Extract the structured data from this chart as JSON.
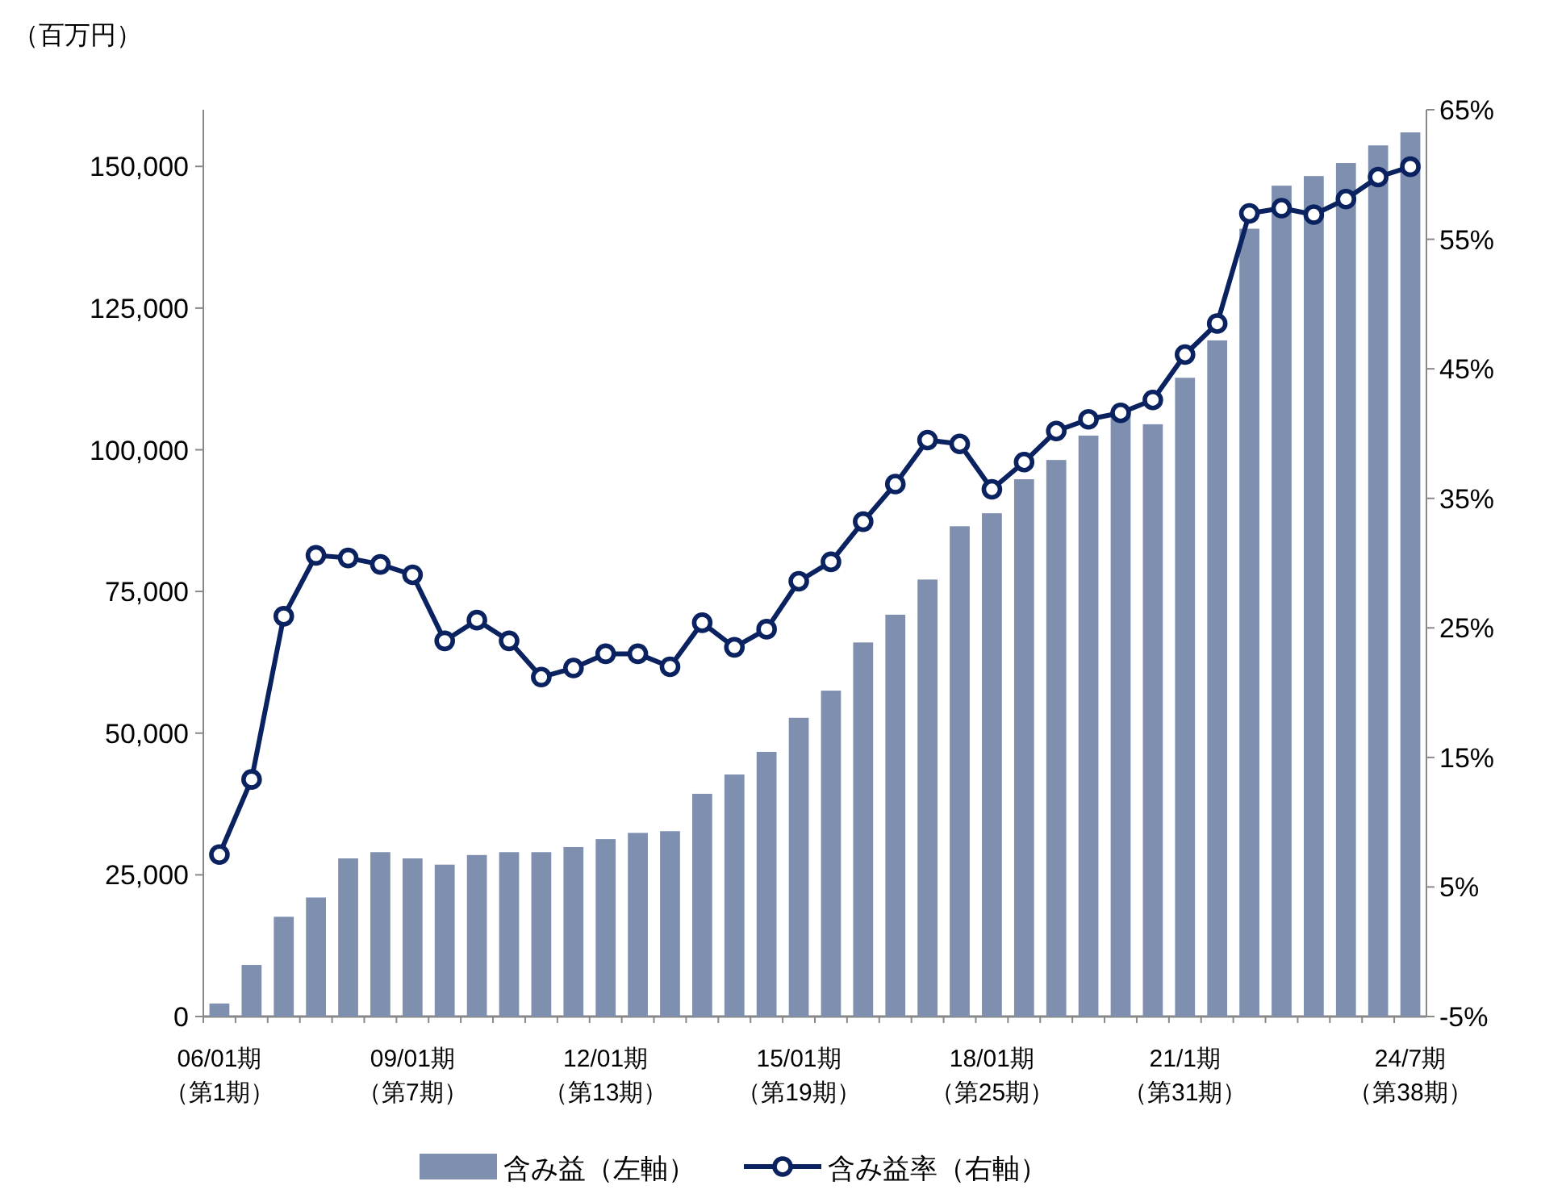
{
  "chart_data": {
    "type": "bar",
    "ylabel": "（百万円）",
    "categories": [
      "06/01期（第1期）",
      null,
      null,
      null,
      null,
      null,
      "09/01期（第7期）",
      null,
      null,
      null,
      null,
      null,
      "12/01期（第13期）",
      null,
      null,
      null,
      null,
      null,
      "15/01期（第19期）",
      null,
      null,
      null,
      null,
      null,
      "18/01期（第25期）",
      null,
      null,
      null,
      null,
      null,
      "21/1期（第31期）",
      null,
      null,
      null,
      null,
      null,
      null,
      "24/7期（第38期）"
    ],
    "series": [
      {
        "name": "含み益（左軸）",
        "color": "#7f8fb0",
        "values": [
          2300,
          9100,
          17600,
          21000,
          27900,
          29000,
          27900,
          26800,
          28500,
          29000,
          29000,
          29900,
          31300,
          32400,
          32700,
          39300,
          42700,
          46700,
          52700,
          57500,
          66000,
          70900,
          77100,
          86500,
          88800,
          94800,
          98200,
          102500,
          106200,
          104500,
          112700,
          119300,
          139000,
          146600,
          148300,
          150600,
          153700,
          156000
        ]
      },
      {
        "name": "含み益率（右軸）",
        "type": "line",
        "axis": "y2",
        "marker": "circle",
        "color": "#0b2260",
        "values": [
          7.5,
          13.3,
          25.9,
          30.6,
          30.4,
          29.9,
          29.1,
          24.0,
          25.6,
          24.0,
          21.2,
          21.9,
          23.0,
          23.0,
          22.0,
          25.4,
          23.5,
          24.9,
          28.6,
          30.1,
          33.2,
          36.1,
          39.5,
          39.2,
          35.7,
          37.8,
          40.2,
          41.1,
          41.6,
          42.6,
          46.1,
          48.5,
          57.0,
          57.4,
          56.9,
          58.1,
          59.8,
          60.6
        ]
      }
    ],
    "ylim": [
      0,
      160000
    ],
    "yticks": [
      {
        "value": 0,
        "label": "0"
      },
      {
        "value": 25000,
        "label": "25,000"
      },
      {
        "value": 50000,
        "label": "50,000"
      },
      {
        "value": 75000,
        "label": "75,000"
      },
      {
        "value": 100000,
        "label": "100,000"
      },
      {
        "value": 125000,
        "label": "125,000"
      },
      {
        "value": 150000,
        "label": "150,000"
      }
    ],
    "y2lim": [
      -5,
      65
    ],
    "y2ticks": [
      {
        "value": -5,
        "label": "-5%"
      },
      {
        "value": 5,
        "label": "5%"
      },
      {
        "value": 15,
        "label": "15%"
      },
      {
        "value": 25,
        "label": "25%"
      },
      {
        "value": 35,
        "label": "35%"
      },
      {
        "value": 45,
        "label": "45%"
      },
      {
        "value": 55,
        "label": "55%"
      },
      {
        "value": 65,
        "label": "65%"
      }
    ],
    "legend": "bottom"
  }
}
